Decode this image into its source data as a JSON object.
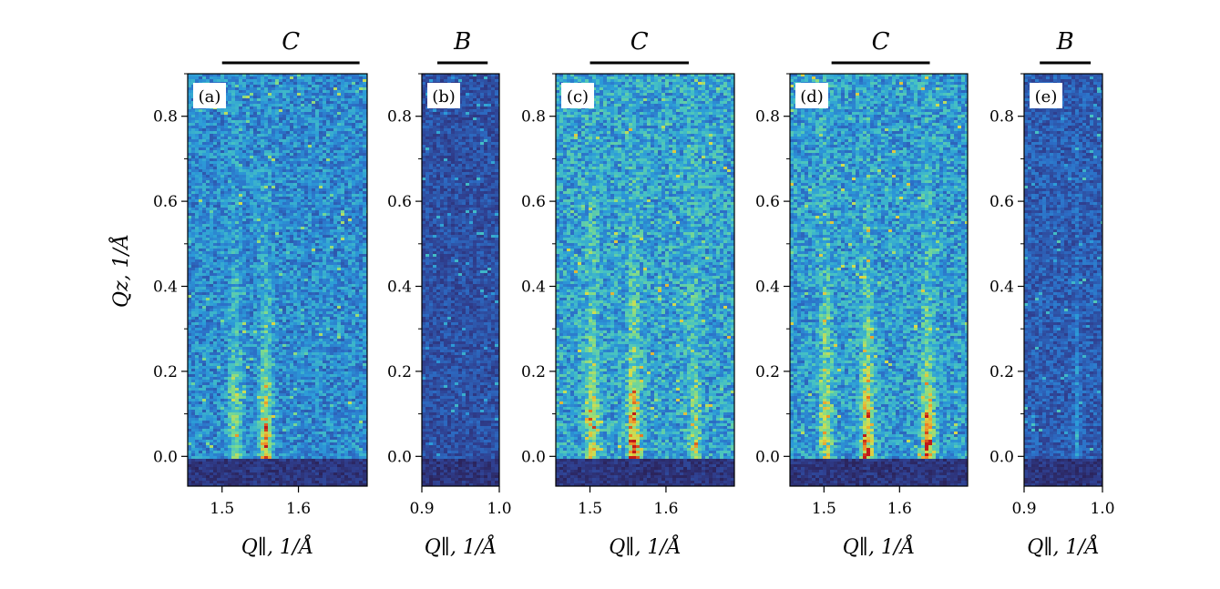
{
  "chart_data": [
    {
      "type": "heatmap",
      "panel_label": "(a)",
      "group_label": "C",
      "group_span": [
        1.5,
        1.68
      ],
      "xlabel": "Q∥, 1/Å",
      "ylabel": "Qz, 1/Å",
      "xlim": [
        1.455,
        1.69
      ],
      "ylim": [
        -0.07,
        0.9
      ],
      "xticks": [
        "1.5",
        "1.6"
      ],
      "yticks": [
        "0.0",
        "0.2",
        "0.4",
        "0.6",
        "0.8"
      ],
      "intensity_peaks": [
        {
          "x": 1.555,
          "y": 0.0,
          "level": "high"
        },
        {
          "x": 1.515,
          "y": 0.1,
          "level": "medium"
        }
      ],
      "background_level": 0.35
    },
    {
      "type": "heatmap",
      "panel_label": "(b)",
      "group_label": "B",
      "group_span": [
        0.92,
        0.985
      ],
      "xlabel": "Q∥, 1/Å",
      "ylabel": "",
      "xlim": [
        0.9,
        1.0
      ],
      "ylim": [
        -0.07,
        0.9
      ],
      "xticks": [
        "0.9",
        "1.0"
      ],
      "yticks": [
        "0.0",
        "0.2",
        "0.4",
        "0.6",
        "0.8"
      ],
      "intensity_peaks": [],
      "background_level": 0.18
    },
    {
      "type": "heatmap",
      "panel_label": "(c)",
      "group_label": "C",
      "group_span": [
        1.5,
        1.63
      ],
      "xlabel": "Q∥, 1/Å",
      "ylabel": "",
      "xlim": [
        1.455,
        1.69
      ],
      "ylim": [
        -0.07,
        0.9
      ],
      "xticks": [
        "1.5",
        "1.6"
      ],
      "yticks": [
        "0.0",
        "0.2",
        "0.4",
        "0.6",
        "0.8"
      ],
      "intensity_peaks": [
        {
          "x": 1.555,
          "y": 0.0,
          "level": "high"
        },
        {
          "x": 1.5,
          "y": 0.1,
          "level": "medium"
        },
        {
          "x": 1.635,
          "y": 0.0,
          "level": "medium"
        }
      ],
      "background_level": 0.42
    },
    {
      "type": "heatmap",
      "panel_label": "(d)",
      "group_label": "C",
      "group_span": [
        1.51,
        1.64
      ],
      "xlabel": "Q∥, 1/Å",
      "ylabel": "",
      "xlim": [
        1.455,
        1.69
      ],
      "ylim": [
        -0.07,
        0.9
      ],
      "xticks": [
        "1.5",
        "1.6"
      ],
      "yticks": [
        "0.0",
        "0.2",
        "0.4",
        "0.6",
        "0.8"
      ],
      "intensity_peaks": [
        {
          "x": 1.555,
          "y": 0.0,
          "level": "high"
        },
        {
          "x": 1.5,
          "y": 0.15,
          "level": "medium"
        },
        {
          "x": 1.635,
          "y": 0.0,
          "level": "high"
        }
      ],
      "background_level": 0.4
    },
    {
      "type": "heatmap",
      "panel_label": "(e)",
      "group_label": "B",
      "group_span": [
        0.92,
        0.985
      ],
      "xlabel": "Q∥, 1/Å",
      "ylabel": "",
      "xlim": [
        0.9,
        1.0
      ],
      "ylim": [
        -0.07,
        0.9
      ],
      "xticks": [
        "0.9",
        "1.0"
      ],
      "yticks": [
        "0.0",
        "0.2",
        "0.4",
        "0.6",
        "0.8"
      ],
      "intensity_peaks": [
        {
          "x": 0.965,
          "y": 0.05,
          "level": "low"
        }
      ],
      "background_level": 0.22
    }
  ],
  "colormap": [
    "#2a1b4b",
    "#2f3f8f",
    "#2c6fc7",
    "#2c9bd8",
    "#45c1c4",
    "#7ddb8c",
    "#d8dd4a",
    "#f08a26",
    "#c01919"
  ]
}
